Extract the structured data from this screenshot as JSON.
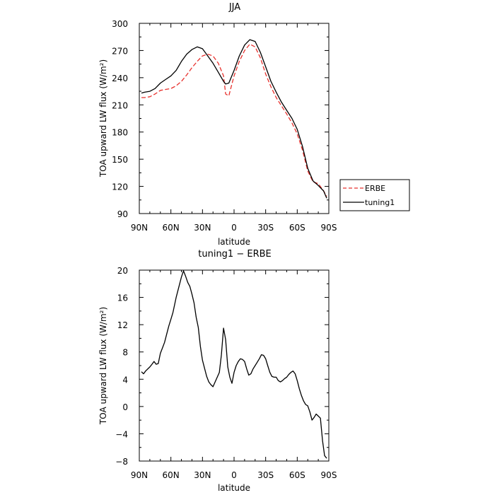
{
  "chart_data": [
    {
      "type": "line",
      "title": "JJA",
      "xlabel": "latitude",
      "ylabel": "TOA upward LW flux (W/m²)",
      "xlim": [
        -90,
        90
      ],
      "ylim": [
        90,
        300
      ],
      "x_ticks": [
        -90,
        -60,
        -30,
        0,
        30,
        60,
        90
      ],
      "x_tick_labels": [
        "90N",
        "60N",
        "30N",
        "0",
        "30S",
        "60S",
        "90S"
      ],
      "y_ticks": [
        90,
        120,
        150,
        180,
        210,
        240,
        270,
        300
      ],
      "y_tick_labels": [
        "90",
        "120",
        "150",
        "180",
        "210",
        "240",
        "270",
        "300"
      ],
      "legend": "outside-right",
      "grid": false,
      "series": [
        {
          "name": "ERBE",
          "color": "#e8312d",
          "dash": "dashed",
          "x": [
            -88,
            -85,
            -80,
            -75,
            -70,
            -65,
            -60,
            -55,
            -50,
            -45,
            -40,
            -35,
            -30,
            -25,
            -20,
            -15,
            -10,
            -8,
            -5,
            0,
            5,
            10,
            15,
            20,
            25,
            30,
            35,
            40,
            45,
            50,
            55,
            60,
            65,
            70,
            75,
            80,
            85,
            88
          ],
          "y": [
            218,
            218,
            219,
            222,
            226,
            227,
            228,
            231,
            236,
            243,
            251,
            258,
            264,
            266,
            264,
            256,
            242,
            222,
            220,
            242,
            258,
            270,
            277,
            274,
            262,
            244,
            230,
            218,
            209,
            200,
            190,
            178,
            160,
            137,
            125,
            123,
            115,
            109
          ]
        },
        {
          "name": "tuning1",
          "color": "#000000",
          "dash": "solid",
          "x": [
            -88,
            -85,
            -80,
            -75,
            -70,
            -65,
            -60,
            -55,
            -50,
            -45,
            -40,
            -35,
            -30,
            -25,
            -20,
            -15,
            -10,
            -8,
            -5,
            0,
            5,
            10,
            15,
            20,
            25,
            30,
            35,
            40,
            45,
            50,
            55,
            60,
            65,
            70,
            75,
            80,
            85,
            88
          ],
          "y": [
            223,
            224,
            225,
            228,
            234,
            238,
            242,
            248,
            258,
            266,
            271,
            274,
            272,
            264,
            256,
            246,
            236,
            233,
            234,
            248,
            264,
            276,
            282,
            280,
            268,
            252,
            236,
            224,
            213,
            204,
            195,
            183,
            164,
            140,
            126,
            121,
            115,
            107
          ]
        }
      ]
    },
    {
      "type": "line",
      "title": "tuning1 − ERBE",
      "xlabel": "latitude",
      "ylabel": "TOA upward LW flux (W/m²)",
      "xlim": [
        -90,
        90
      ],
      "ylim": [
        -8,
        20
      ],
      "x_ticks": [
        -90,
        -60,
        -30,
        0,
        30,
        60,
        90
      ],
      "x_tick_labels": [
        "90N",
        "60N",
        "30N",
        "0",
        "30S",
        "60S",
        "90S"
      ],
      "y_ticks": [
        -8,
        -4,
        0,
        4,
        8,
        12,
        16,
        20
      ],
      "y_tick_labels": [
        "−8",
        "−4",
        "0",
        "4",
        "8",
        "12",
        "16",
        "20"
      ],
      "grid": false,
      "series": [
        {
          "color": "#000000",
          "dash": "solid",
          "x": [
            -88,
            -86,
            -84,
            -80,
            -78,
            -76,
            -74,
            -72,
            -70,
            -68,
            -66,
            -64,
            -62,
            -60,
            -58,
            -55,
            -52,
            -50,
            -48,
            -46,
            -44,
            -42,
            -40,
            -38,
            -36,
            -34,
            -32,
            -30,
            -28,
            -26,
            -24,
            -22,
            -20,
            -18,
            -16,
            -14,
            -12,
            -10,
            -8,
            -6,
            -4,
            -2,
            0,
            2,
            4,
            6,
            8,
            10,
            12,
            14,
            16,
            18,
            20,
            22,
            24,
            26,
            28,
            30,
            32,
            34,
            36,
            38,
            40,
            42,
            44,
            46,
            48,
            50,
            52,
            54,
            56,
            58,
            60,
            62,
            64,
            66,
            68,
            70,
            72,
            74,
            76,
            78,
            80,
            82,
            84,
            86,
            88
          ],
          "y": [
            5.1,
            4.8,
            5.2,
            5.8,
            6.2,
            6.6,
            6.2,
            6.3,
            7.8,
            8.6,
            9.4,
            10.6,
            11.8,
            12.8,
            13.8,
            16.0,
            17.8,
            19.0,
            19.9,
            19.1,
            18.2,
            17.6,
            16.5,
            15.2,
            13.1,
            11.6,
            8.8,
            6.8,
            5.6,
            4.4,
            3.6,
            3.2,
            2.9,
            3.6,
            4.3,
            5.0,
            7.6,
            11.5,
            9.8,
            5.8,
            4.3,
            3.4,
            5.0,
            6.0,
            6.6,
            7.0,
            6.9,
            6.6,
            5.5,
            4.6,
            4.8,
            5.5,
            6.0,
            6.5,
            7.0,
            7.6,
            7.5,
            7.0,
            6.0,
            5.0,
            4.4,
            4.3,
            4.3,
            3.8,
            3.6,
            3.8,
            4.1,
            4.3,
            4.7,
            5.0,
            5.2,
            4.8,
            3.8,
            2.6,
            1.6,
            0.8,
            0.3,
            0.1,
            -0.8,
            -2.0,
            -1.6,
            -1.1,
            -1.4,
            -1.7,
            -5.0,
            -7.2,
            -7.6
          ]
        }
      ]
    }
  ]
}
